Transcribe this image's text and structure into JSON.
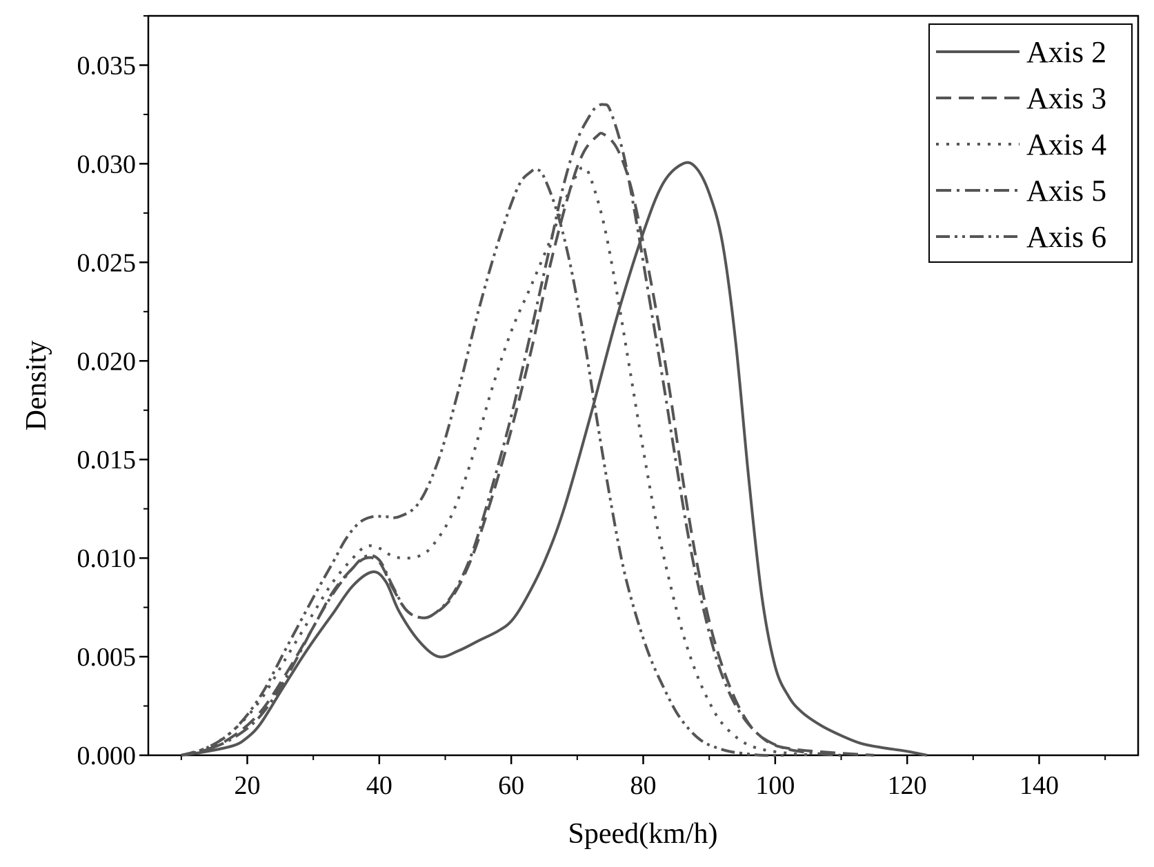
{
  "chart_data": {
    "type": "line",
    "title": "",
    "xlabel": "Speed(km/h)",
    "ylabel": "Density",
    "xlim": [
      5,
      155
    ],
    "ylim": [
      0,
      0.0375
    ],
    "xticks": [
      20,
      40,
      60,
      80,
      100,
      120,
      140
    ],
    "xtick_labels": [
      "20",
      "40",
      "60",
      "80",
      "100",
      "120",
      "140"
    ],
    "yticks": [
      0,
      0.005,
      0.01,
      0.015,
      0.02,
      0.025,
      0.03,
      0.035
    ],
    "ytick_labels": [
      "0.000",
      "0.005",
      "0.010",
      "0.015",
      "0.020",
      "0.025",
      "0.030",
      "0.035"
    ],
    "grid": false,
    "legend_position": "top-right",
    "line_color": "#555555",
    "series": [
      {
        "name": "Axis 2",
        "dash": "solid",
        "x": [
          10,
          14,
          18,
          20,
          22,
          25,
          28,
          30,
          33,
          36,
          39,
          41,
          43,
          46,
          49,
          52,
          55,
          58,
          60,
          62,
          65,
          68,
          72,
          76,
          80,
          83,
          86,
          88,
          90,
          92,
          94,
          96,
          98,
          100,
          102,
          104,
          107,
          110,
          113,
          116,
          120,
          123
        ],
        "y": [
          0.0,
          0.0002,
          0.0005,
          0.0009,
          0.0016,
          0.0032,
          0.0048,
          0.0058,
          0.0072,
          0.0086,
          0.0093,
          0.0088,
          0.0073,
          0.0058,
          0.005,
          0.0053,
          0.0058,
          0.0063,
          0.0068,
          0.0078,
          0.0098,
          0.0125,
          0.0172,
          0.0222,
          0.0265,
          0.029,
          0.03,
          0.0298,
          0.0285,
          0.026,
          0.021,
          0.014,
          0.008,
          0.0045,
          0.003,
          0.0022,
          0.0015,
          0.001,
          0.0006,
          0.0004,
          0.0002,
          0.0
        ]
      },
      {
        "name": "Axis 3",
        "dash": "long-dash",
        "x": [
          10,
          14,
          18,
          22,
          26,
          30,
          33,
          36,
          38,
          40,
          42,
          44,
          46,
          48,
          51,
          54,
          57,
          60,
          63,
          66,
          69,
          71,
          73,
          74,
          76,
          78,
          80,
          82,
          84,
          86,
          88,
          90,
          92,
          94,
          96,
          98,
          100,
          103,
          106,
          110,
          115
        ],
        "y": [
          0.0,
          0.0003,
          0.001,
          0.0022,
          0.0042,
          0.0065,
          0.0083,
          0.0095,
          0.01,
          0.0098,
          0.0085,
          0.0074,
          0.007,
          0.0071,
          0.008,
          0.01,
          0.013,
          0.0165,
          0.0205,
          0.025,
          0.0288,
          0.0306,
          0.0314,
          0.0315,
          0.0308,
          0.029,
          0.026,
          0.0225,
          0.0185,
          0.014,
          0.01,
          0.0068,
          0.0045,
          0.0028,
          0.0016,
          0.0009,
          0.0005,
          0.0003,
          0.0002,
          0.0001,
          0.0
        ]
      },
      {
        "name": "Axis 4",
        "dash": "dot",
        "x": [
          10,
          14,
          18,
          22,
          26,
          30,
          33,
          36,
          38,
          40,
          42,
          44,
          46,
          48,
          51,
          54,
          57,
          60,
          63,
          66,
          68,
          70,
          71,
          72,
          74,
          76,
          78,
          80,
          82,
          84,
          86,
          88,
          90,
          92,
          95,
          98,
          102,
          106
        ],
        "y": [
          0.0,
          0.0004,
          0.0013,
          0.0028,
          0.005,
          0.0072,
          0.0088,
          0.01,
          0.0106,
          0.0105,
          0.0101,
          0.01,
          0.0101,
          0.0106,
          0.0122,
          0.015,
          0.0185,
          0.0215,
          0.0238,
          0.0262,
          0.028,
          0.0295,
          0.0298,
          0.0293,
          0.027,
          0.0235,
          0.0195,
          0.0155,
          0.0118,
          0.0088,
          0.0062,
          0.0042,
          0.0027,
          0.0016,
          0.0007,
          0.0003,
          0.0001,
          0.0
        ]
      },
      {
        "name": "Axis 5",
        "dash": "dash-dot",
        "x": [
          10,
          14,
          18,
          22,
          26,
          30,
          33,
          36,
          38,
          40,
          42,
          44,
          46,
          48,
          51,
          54,
          57,
          60,
          63,
          66,
          68,
          70,
          72,
          73,
          74,
          75,
          77,
          79,
          81,
          83,
          85,
          87,
          89,
          91,
          93,
          95,
          97,
          99,
          102,
          106,
          110
        ],
        "y": [
          0.0,
          0.0003,
          0.0009,
          0.002,
          0.004,
          0.0065,
          0.0082,
          0.0095,
          0.0101,
          0.0099,
          0.0086,
          0.0074,
          0.007,
          0.0071,
          0.0081,
          0.0102,
          0.0135,
          0.0172,
          0.0215,
          0.026,
          0.029,
          0.0312,
          0.0325,
          0.0329,
          0.033,
          0.0327,
          0.0305,
          0.027,
          0.023,
          0.019,
          0.0148,
          0.0108,
          0.0076,
          0.005,
          0.0032,
          0.002,
          0.0012,
          0.0007,
          0.0003,
          0.0001,
          0.0
        ]
      },
      {
        "name": "Axis 6",
        "dash": "dash-dot-dot",
        "x": [
          10,
          14,
          18,
          22,
          26,
          30,
          33,
          35,
          37,
          39,
          41,
          43,
          46,
          49,
          52,
          55,
          58,
          61,
          63,
          64,
          65,
          67,
          69,
          71,
          73,
          75,
          77,
          79,
          81,
          83,
          85,
          87,
          89,
          91,
          93,
          95,
          98,
          102
        ],
        "y": [
          0.0,
          0.0004,
          0.0013,
          0.003,
          0.0055,
          0.008,
          0.0098,
          0.011,
          0.0118,
          0.0121,
          0.0121,
          0.0121,
          0.0128,
          0.015,
          0.0185,
          0.0225,
          0.026,
          0.0288,
          0.0296,
          0.0297,
          0.0293,
          0.0275,
          0.0248,
          0.0212,
          0.017,
          0.013,
          0.0095,
          0.007,
          0.005,
          0.0035,
          0.0022,
          0.0013,
          0.0007,
          0.0004,
          0.0002,
          0.0001,
          0.0,
          0.0
        ]
      }
    ]
  }
}
